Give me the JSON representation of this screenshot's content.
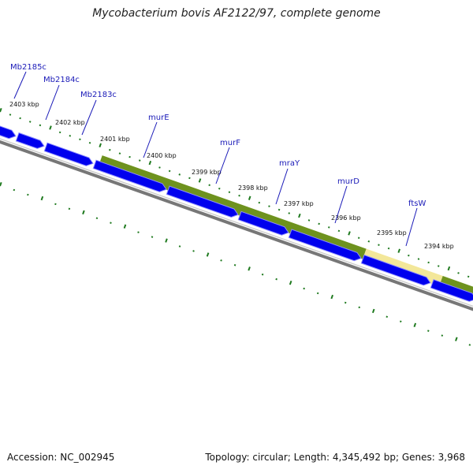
{
  "title": "Mycobacterium bovis AF2122/97, complete genome",
  "footer": {
    "accession": "Accession: NC_002945",
    "summary": "Topology: circular; Length: 4,345,492 bp; Genes: 3,968"
  },
  "colors": {
    "gene_fill": "#0000ee",
    "gene_edge": "#8c8cff",
    "backbone": "#777777",
    "operon_fill": "#6e921e",
    "operon_highlight": "#f3e79a",
    "tick": "#1f7a1f",
    "label": "#1a1ab8"
  },
  "tick_labels": [
    "2403 kbp",
    "2402 kbp",
    "2401 kbp",
    "2400 kbp",
    "2399 kbp",
    "2398 kbp",
    "2397 kbp",
    "2396 kbp",
    "2395 kbp",
    "2394 kbp"
  ],
  "gene_labels": [
    "Mb2185c",
    "Mb2184c",
    "Mb2183c",
    "murE",
    "murF",
    "mraY",
    "murD",
    "ftsW"
  ]
}
